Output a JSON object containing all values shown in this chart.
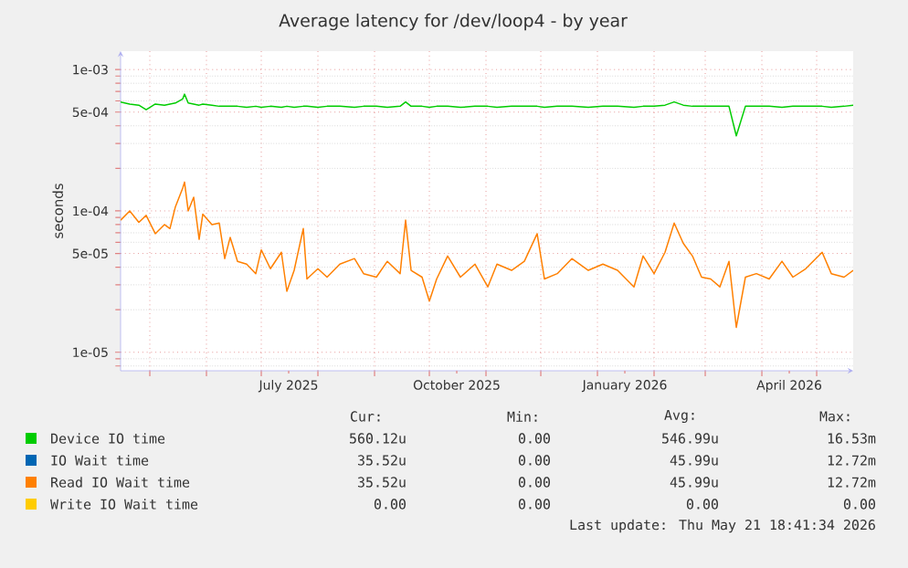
{
  "chart_data": {
    "type": "line",
    "title": "Average latency for /dev/loop4 - by year",
    "ylabel": "seconds",
    "log": "y",
    "grid": true,
    "legend": "bottom",
    "xlim": [
      "2025-04-15",
      "2026-05-21"
    ],
    "ylim": [
      7.4e-06,
      0.00135
    ],
    "xticks": [
      {
        "value": "2025-05-01",
        "label": null
      },
      {
        "value": "2025-06-01",
        "label": null
      },
      {
        "value": "2025-07-01",
        "label": null
      },
      {
        "value": "2025-07-16",
        "label": "July 2025"
      },
      {
        "value": "2025-08-01",
        "label": null
      },
      {
        "value": "2025-09-01",
        "label": null
      },
      {
        "value": "2025-10-01",
        "label": null
      },
      {
        "value": "2025-10-16",
        "label": "October 2025"
      },
      {
        "value": "2025-11-01",
        "label": null
      },
      {
        "value": "2025-12-01",
        "label": null
      },
      {
        "value": "2026-01-01",
        "label": null
      },
      {
        "value": "2026-01-16",
        "label": "January 2026"
      },
      {
        "value": "2026-02-01",
        "label": null
      },
      {
        "value": "2026-03-01",
        "label": null
      },
      {
        "value": "2026-04-01",
        "label": null
      },
      {
        "value": "2026-04-16",
        "label": "April 2026"
      },
      {
        "value": "2026-05-01",
        "label": null
      }
    ],
    "yticks": [
      {
        "value": 1e-05,
        "label": "1e-05"
      },
      {
        "value": 5e-05,
        "label": "5e-05"
      },
      {
        "value": 0.0001,
        "label": "1e-04"
      },
      {
        "value": 0.0005,
        "label": "5e-04"
      },
      {
        "value": 0.001,
        "label": "1e-03"
      }
    ],
    "x": [
      "2025-04-15",
      "2025-04-20",
      "2025-04-25",
      "2025-04-29",
      "2025-05-04",
      "2025-05-09",
      "2025-05-12",
      "2025-05-15",
      "2025-05-19",
      "2025-05-20",
      "2025-05-22",
      "2025-05-25",
      "2025-05-28",
      "2025-05-30",
      "2025-06-04",
      "2025-06-08",
      "2025-06-11",
      "2025-06-14",
      "2025-06-18",
      "2025-06-23",
      "2025-06-28",
      "2025-07-01",
      "2025-07-06",
      "2025-07-12",
      "2025-07-15",
      "2025-07-19",
      "2025-07-24",
      "2025-07-26",
      "2025-08-01",
      "2025-08-06",
      "2025-08-13",
      "2025-08-21",
      "2025-08-26",
      "2025-09-02",
      "2025-09-08",
      "2025-09-15",
      "2025-09-18",
      "2025-09-21",
      "2025-09-27",
      "2025-10-01",
      "2025-10-05",
      "2025-10-11",
      "2025-10-18",
      "2025-10-26",
      "2025-11-02",
      "2025-11-07",
      "2025-11-15",
      "2025-11-22",
      "2025-11-29",
      "2025-12-03",
      "2025-12-10",
      "2025-12-18",
      "2025-12-27",
      "2026-01-04",
      "2026-01-12",
      "2026-01-21",
      "2026-01-26",
      "2026-02-01",
      "2026-02-07",
      "2026-02-12",
      "2026-02-17",
      "2026-02-22",
      "2026-02-27",
      "2026-03-04",
      "2026-03-09",
      "2026-03-14",
      "2026-03-18",
      "2026-03-23",
      "2026-03-29",
      "2026-04-05",
      "2026-04-12",
      "2026-04-18",
      "2026-04-25",
      "2026-05-04",
      "2026-05-09",
      "2026-05-16",
      "2026-05-21"
    ],
    "series": [
      {
        "name": "Device IO time",
        "color": "#00cc00",
        "values": [
          0.00059,
          0.00057,
          0.00056,
          0.00052,
          0.00057,
          0.00056,
          0.00057,
          0.00058,
          0.00062,
          0.00067,
          0.00058,
          0.00057,
          0.00056,
          0.00057,
          0.00056,
          0.00055,
          0.00055,
          0.00055,
          0.00055,
          0.00054,
          0.00055,
          0.00054,
          0.00055,
          0.00054,
          0.00055,
          0.00054,
          0.00055,
          0.00055,
          0.00054,
          0.00055,
          0.00055,
          0.00054,
          0.00055,
          0.00055,
          0.00054,
          0.00055,
          0.00059,
          0.00055,
          0.00055,
          0.00054,
          0.00055,
          0.00055,
          0.00054,
          0.00055,
          0.00055,
          0.00054,
          0.00055,
          0.00055,
          0.00055,
          0.00054,
          0.00055,
          0.00055,
          0.00054,
          0.00055,
          0.00055,
          0.00054,
          0.00055,
          0.00055,
          0.00056,
          0.00059,
          0.00056,
          0.00055,
          0.00055,
          0.00055,
          0.00055,
          0.00055,
          0.00034,
          0.00055,
          0.00055,
          0.00055,
          0.00054,
          0.00055,
          0.00055,
          0.00055,
          0.00054,
          0.00055,
          0.00056
        ]
      },
      {
        "name": "IO Wait time",
        "color": "#0066b3",
        "values": [
          null,
          null,
          null,
          null,
          null,
          null,
          null,
          null,
          null,
          null,
          null,
          null,
          null,
          null,
          null,
          null,
          null,
          null,
          null,
          null,
          null,
          null,
          null,
          null,
          null,
          null,
          null,
          null,
          null,
          null,
          null,
          null,
          null,
          null,
          null,
          null,
          null,
          null,
          null,
          null,
          null,
          null,
          null,
          null,
          null,
          null,
          null,
          null,
          null,
          null,
          null,
          null,
          null,
          null,
          null,
          null,
          null,
          null,
          null,
          null,
          null,
          null,
          null,
          null,
          null,
          null,
          null,
          null,
          null,
          null,
          null,
          null,
          null,
          null,
          null,
          null,
          null
        ]
      },
      {
        "name": "Read IO Wait time",
        "color": "#ff8000",
        "values": [
          8.6e-05,
          0.0001,
          8.3e-05,
          9.3e-05,
          6.9e-05,
          8e-05,
          7.5e-05,
          0.000107,
          0.000145,
          0.00016,
          0.0001,
          0.000125,
          6.3e-05,
          9.5e-05,
          8e-05,
          8.2e-05,
          4.6e-05,
          6.5e-05,
          4.4e-05,
          4.2e-05,
          3.6e-05,
          5.3e-05,
          3.9e-05,
          5.1e-05,
          2.7e-05,
          3.8e-05,
          7.5e-05,
          3.3e-05,
          3.9e-05,
          3.4e-05,
          4.2e-05,
          4.6e-05,
          3.6e-05,
          3.4e-05,
          4.4e-05,
          3.6e-05,
          8.6e-05,
          3.8e-05,
          3.4e-05,
          2.3e-05,
          3.3e-05,
          4.8e-05,
          3.4e-05,
          4.2e-05,
          2.9e-05,
          4.2e-05,
          3.8e-05,
          4.4e-05,
          6.9e-05,
          3.3e-05,
          3.6e-05,
          4.6e-05,
          3.8e-05,
          4.2e-05,
          3.8e-05,
          2.9e-05,
          4.8e-05,
          3.6e-05,
          5.1e-05,
          8.2e-05,
          5.9e-05,
          4.8e-05,
          3.4e-05,
          3.3e-05,
          2.9e-05,
          4.4e-05,
          1.5e-05,
          3.4e-05,
          3.6e-05,
          3.3e-05,
          4.4e-05,
          3.4e-05,
          3.9e-05,
          5.1e-05,
          3.6e-05,
          3.4e-05,
          3.8e-05
        ]
      },
      {
        "name": "Write IO Wait time",
        "color": "#ffcc00",
        "values": [
          null,
          null,
          null,
          null,
          null,
          null,
          null,
          null,
          null,
          null,
          null,
          null,
          null,
          null,
          null,
          null,
          null,
          null,
          null,
          null,
          null,
          null,
          null,
          null,
          null,
          null,
          null,
          null,
          null,
          null,
          null,
          null,
          null,
          null,
          null,
          null,
          null,
          null,
          null,
          null,
          null,
          null,
          null,
          null,
          null,
          null,
          null,
          null,
          null,
          null,
          null,
          null,
          null,
          null,
          null,
          null,
          null,
          null,
          null,
          null,
          null,
          null,
          null,
          null,
          null,
          null,
          null,
          null,
          null,
          null,
          null,
          null,
          null,
          null,
          null,
          null,
          null
        ]
      }
    ],
    "annotations": [
      "Cur:",
      "Min:",
      "Avg:",
      "Max:",
      "560.12u",
      "0.00",
      "546.99u",
      "16.53m",
      "35.52u",
      "0.00",
      "45.99u",
      "12.72m",
      "35.52u",
      "0.00",
      "45.99u",
      "12.72m",
      "0.00",
      "0.00",
      "0.00",
      "0.00",
      "Last update: Thu May 21 18:41:34 2026"
    ]
  }
}
